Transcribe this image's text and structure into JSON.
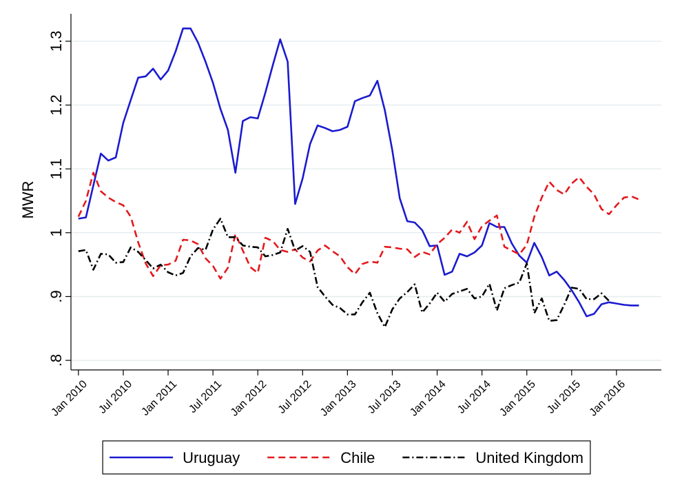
{
  "chart_data": {
    "type": "line",
    "ylabel": "MWR",
    "x": [
      "2010-01",
      "2010-02",
      "2010-03",
      "2010-04",
      "2010-05",
      "2010-06",
      "2010-07",
      "2010-08",
      "2010-09",
      "2010-10",
      "2010-11",
      "2010-12",
      "2011-01",
      "2011-02",
      "2011-03",
      "2011-04",
      "2011-05",
      "2011-06",
      "2011-07",
      "2011-08",
      "2011-09",
      "2011-10",
      "2011-11",
      "2011-12",
      "2012-01",
      "2012-02",
      "2012-03",
      "2012-04",
      "2012-05",
      "2012-06",
      "2012-07",
      "2012-08",
      "2012-09",
      "2012-10",
      "2012-11",
      "2012-12",
      "2013-01",
      "2013-02",
      "2013-03",
      "2013-04",
      "2013-05",
      "2013-06",
      "2013-07",
      "2013-08",
      "2013-09",
      "2013-10",
      "2013-11",
      "2013-12",
      "2014-01",
      "2014-02",
      "2014-03",
      "2014-04",
      "2014-05",
      "2014-06",
      "2014-07",
      "2014-08",
      "2014-09",
      "2014-10",
      "2014-11",
      "2014-12",
      "2015-01",
      "2015-02",
      "2015-03",
      "2015-04",
      "2015-05",
      "2015-06",
      "2015-07",
      "2015-08",
      "2015-09",
      "2015-10",
      "2015-11",
      "2015-12",
      "2016-01",
      "2016-02",
      "2016-03",
      "2016-04"
    ],
    "series": [
      {
        "name": "Uruguay",
        "color": "#1a1ad0",
        "linestyle": "solid",
        "values": [
          1.022,
          1.024,
          1.074,
          1.124,
          1.113,
          1.118,
          1.172,
          1.208,
          1.243,
          1.245,
          1.257,
          1.24,
          1.254,
          1.284,
          1.32,
          1.32,
          1.298,
          1.268,
          1.235,
          1.194,
          1.161,
          1.094,
          1.175,
          1.181,
          1.179,
          1.219,
          1.262,
          1.303,
          1.268,
          1.045,
          1.085,
          1.139,
          1.168,
          1.164,
          1.159,
          1.161,
          1.166,
          1.206,
          1.211,
          1.215,
          1.238,
          1.192,
          1.129,
          1.054,
          1.018,
          1.016,
          1.004,
          0.979,
          0.98,
          0.934,
          0.939,
          0.967,
          0.963,
          0.969,
          0.98,
          1.015,
          1.009,
          1.009,
          0.983,
          0.964,
          0.953,
          0.984,
          0.962,
          0.933,
          0.939,
          0.926,
          0.91,
          0.891,
          0.869,
          0.873,
          0.888,
          0.891,
          0.889,
          0.887,
          0.886,
          0.886
        ]
      },
      {
        "name": "Chile",
        "color": "#e3191c",
        "linestyle": "dash",
        "values": [
          1.025,
          1.05,
          1.094,
          1.065,
          1.055,
          1.048,
          1.043,
          1.025,
          0.985,
          0.952,
          0.932,
          0.949,
          0.95,
          0.956,
          0.989,
          0.988,
          0.982,
          0.96,
          0.948,
          0.928,
          0.945,
          0.998,
          0.972,
          0.946,
          0.937,
          0.992,
          0.987,
          0.973,
          0.97,
          0.974,
          0.961,
          0.955,
          0.972,
          0.98,
          0.971,
          0.963,
          0.946,
          0.935,
          0.951,
          0.955,
          0.953,
          0.978,
          0.977,
          0.975,
          0.974,
          0.962,
          0.97,
          0.966,
          0.982,
          0.992,
          1.005,
          1.0,
          1.017,
          0.99,
          1.01,
          1.019,
          1.027,
          0.978,
          0.972,
          0.966,
          0.981,
          1.025,
          1.055,
          1.08,
          1.067,
          1.06,
          1.077,
          1.087,
          1.072,
          1.06,
          1.037,
          1.029,
          1.043,
          1.055,
          1.057,
          1.052
        ]
      },
      {
        "name": "United Kingdom",
        "color": "#000000",
        "linestyle": "dashdot",
        "values": [
          0.971,
          0.973,
          0.942,
          0.967,
          0.966,
          0.953,
          0.954,
          0.977,
          0.97,
          0.957,
          0.944,
          0.95,
          0.938,
          0.933,
          0.937,
          0.963,
          0.976,
          0.973,
          1.005,
          1.022,
          0.993,
          0.993,
          0.98,
          0.978,
          0.977,
          0.963,
          0.965,
          0.969,
          1.006,
          0.972,
          0.979,
          0.97,
          0.915,
          0.9,
          0.887,
          0.882,
          0.872,
          0.872,
          0.891,
          0.906,
          0.874,
          0.852,
          0.88,
          0.897,
          0.907,
          0.919,
          0.875,
          0.889,
          0.906,
          0.892,
          0.904,
          0.908,
          0.912,
          0.897,
          0.9,
          0.92,
          0.878,
          0.913,
          0.918,
          0.922,
          0.952,
          0.874,
          0.897,
          0.862,
          0.863,
          0.887,
          0.914,
          0.912,
          0.896,
          0.896,
          0.905,
          0.893,
          null,
          null,
          null,
          null
        ]
      }
    ],
    "xlim": [
      "2009-12",
      "2016-07"
    ],
    "xticks": [
      {
        "value": "2010-01",
        "label": "Jan 2010"
      },
      {
        "value": "2010-07",
        "label": "Jul 2010"
      },
      {
        "value": "2011-01",
        "label": "Jan 2011"
      },
      {
        "value": "2011-07",
        "label": "Jul 2011"
      },
      {
        "value": "2012-01",
        "label": "Jan 2012"
      },
      {
        "value": "2012-07",
        "label": "Jul 2012"
      },
      {
        "value": "2013-01",
        "label": "Jan 2013"
      },
      {
        "value": "2013-07",
        "label": "Jul 2013"
      },
      {
        "value": "2014-01",
        "label": "Jan 2014"
      },
      {
        "value": "2014-07",
        "label": "Jul 2014"
      },
      {
        "value": "2015-01",
        "label": "Jan 2015"
      },
      {
        "value": "2015-07",
        "label": "Jul 2015"
      },
      {
        "value": "2016-01",
        "label": "Jan 2016"
      }
    ],
    "ylim": [
      0.785,
      1.343
    ],
    "yticks": [
      {
        "value": 0.8,
        "label": ".8"
      },
      {
        "value": 0.9,
        "label": ".9"
      },
      1,
      1.1,
      1.2,
      1.3
    ],
    "grid": true,
    "legend": "bottom"
  }
}
